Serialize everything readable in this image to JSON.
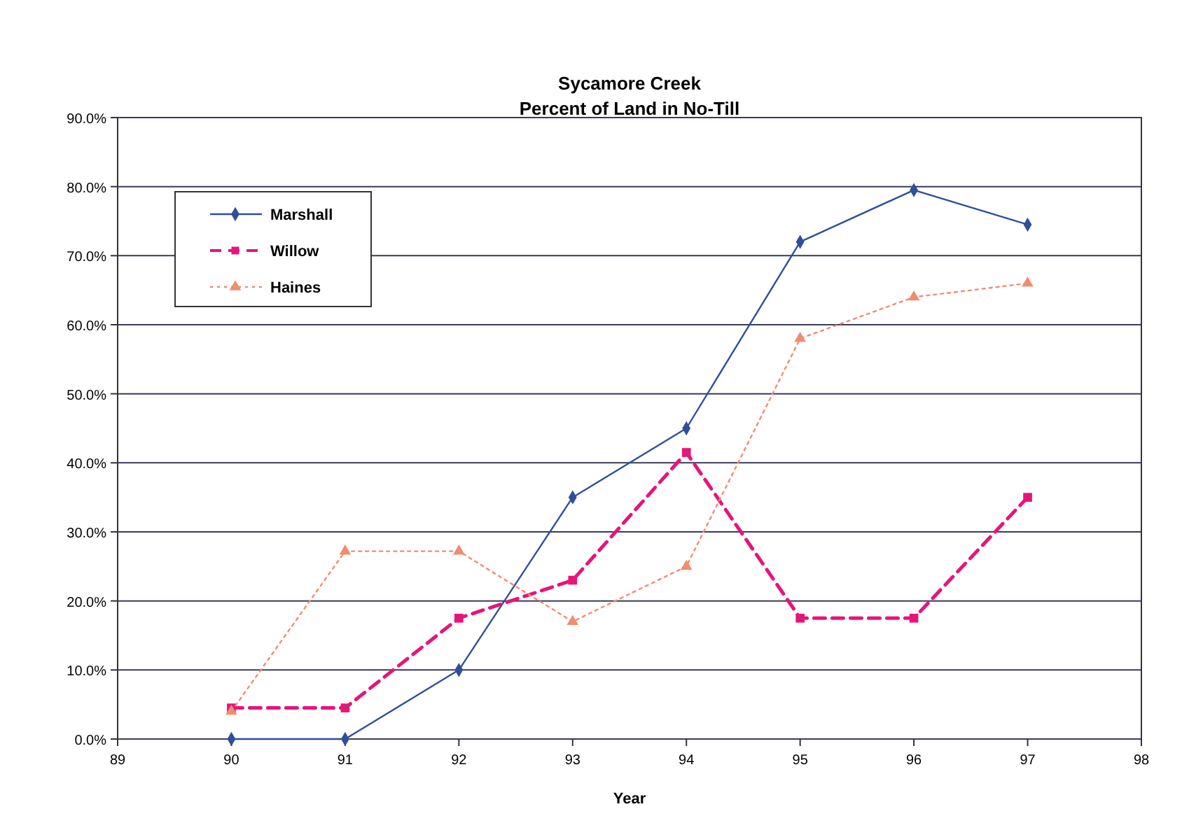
{
  "chart_data": {
    "type": "line",
    "title": "Sycamore Creek",
    "subtitle": "Percent of Land in No-Till",
    "xlabel": "Year",
    "x": [
      90,
      91,
      92,
      93,
      94,
      95,
      96,
      97
    ],
    "series": [
      {
        "name": "Marshall",
        "color": "#2e4f9a",
        "values": [
          0,
          0,
          10,
          35,
          45,
          72,
          79.5,
          74.5
        ],
        "marker": "diamond",
        "line_style": "solid"
      },
      {
        "name": "Willow",
        "color": "#e6157a",
        "values": [
          4.5,
          4.5,
          17.5,
          23,
          41.5,
          17.5,
          17.5,
          35
        ],
        "marker": "square",
        "line_style": "dashed"
      },
      {
        "name": "Haines",
        "color": "#f28c6e",
        "values": [
          4,
          27.2,
          27.2,
          17,
          25,
          58,
          64,
          66
        ],
        "marker": "triangle",
        "line_style": "dotted"
      }
    ],
    "xlim": [
      89,
      98
    ],
    "xticks": [
      89,
      90,
      91,
      92,
      93,
      94,
      95,
      96,
      97,
      98
    ],
    "ylim": [
      0,
      90
    ],
    "yticks": [
      {
        "value": 0,
        "label": "0.0%"
      },
      {
        "value": 10,
        "label": "10.0%"
      },
      {
        "value": 20,
        "label": "20.0%"
      },
      {
        "value": 30,
        "label": "30.0%"
      },
      {
        "value": 40,
        "label": "40.0%"
      },
      {
        "value": 50,
        "label": "50.0%"
      },
      {
        "value": 60,
        "label": "60.0%"
      },
      {
        "value": 70,
        "label": "70.0%"
      },
      {
        "value": 80,
        "label": "80.0%"
      },
      {
        "value": 90,
        "label": "90.0%"
      }
    ],
    "grid": "y",
    "legend": "top left"
  }
}
